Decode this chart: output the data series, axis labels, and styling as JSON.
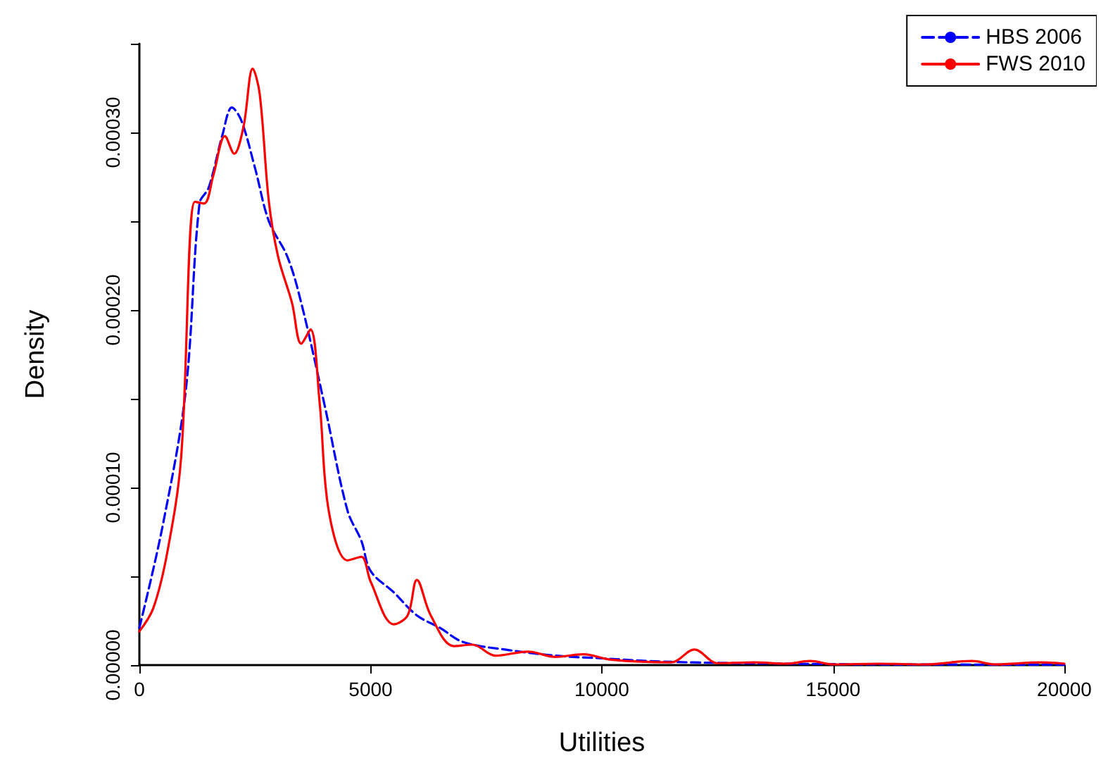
{
  "chart_data": {
    "type": "line",
    "xlabel": "Utilities",
    "ylabel": "Density",
    "xlim": [
      0,
      20000
    ],
    "xticks": [
      0,
      5000,
      10000,
      15000,
      20000
    ],
    "ylim": [
      0,
      0.00035
    ],
    "yticks": [
      {
        "value": 0,
        "label": "0.00000"
      },
      {
        "value": 5e-05,
        "label": null
      },
      {
        "value": 0.0001,
        "label": "0.00010"
      },
      {
        "value": 0.00015,
        "label": null
      },
      {
        "value": 0.0002,
        "label": "0.00020"
      },
      {
        "value": 0.00025,
        "label": null
      },
      {
        "value": 0.0003,
        "label": "0.00030"
      },
      {
        "value": 0.00035,
        "label": null
      }
    ],
    "grid": false,
    "legend": "top right",
    "marker": "none",
    "series": [
      {
        "name": "HBS 2006",
        "color": "#0000ff",
        "line_style": "dashed",
        "x": [
          0,
          500,
          1000,
          1300,
          1500,
          1800,
          2000,
          2200,
          2500,
          2800,
          3200,
          3500,
          4000,
          4500,
          4800,
          5000,
          5500,
          6000,
          6500,
          7000,
          8000,
          9000,
          10000,
          11000,
          12000,
          14000,
          16000,
          18000,
          20000
        ],
        "values": [
          2.1e-05,
          7.8e-05,
          0.000154,
          0.00026,
          0.000269,
          0.000299,
          0.000314,
          0.000307,
          0.00028,
          0.00025,
          0.00023,
          0.000204,
          0.000147,
          8.7e-05,
          7e-05,
          5.3e-05,
          4.1e-05,
          2.8e-05,
          2.1e-05,
          1.3e-05,
          8.4e-06,
          5.3e-06,
          3.8e-06,
          2.3e-06,
          1.5e-06,
          8e-07,
          4e-07,
          3e-07,
          2e-07
        ]
      },
      {
        "name": "FWS 2010",
        "color": "#ff0000",
        "line_style": "solid",
        "x": [
          0,
          300,
          600,
          900,
          1200,
          1400,
          1600,
          1850,
          2050,
          2250,
          2450,
          2600,
          2800,
          3000,
          3300,
          3500,
          3700,
          3900,
          4100,
          4500,
          4800,
          5000,
          5500,
          5800,
          6000,
          6300,
          6800,
          7200,
          7700,
          8400,
          9000,
          9600,
          10200,
          11500,
          12000,
          12500,
          13300,
          14000,
          14500,
          15000,
          16000,
          17000,
          18000,
          18500,
          19500,
          20000
        ],
        "values": [
          1.9e-05,
          3.2e-05,
          6.3e-05,
          0.000116,
          0.000261,
          0.00026,
          0.000276,
          0.000298,
          0.000288,
          0.000303,
          0.000336,
          0.000322,
          0.000261,
          0.00023,
          0.000204,
          0.000181,
          0.000189,
          0.000147,
          8.6e-05,
          5.9e-05,
          6.1e-05,
          4.7e-05,
          2.3e-05,
          2.8e-05,
          4.8e-05,
          2.8e-05,
          1.07e-05,
          1.15e-05,
          5.3e-06,
          7.6e-06,
          4.6e-06,
          6.1e-06,
          3e-06,
          1.5e-06,
          8.8e-06,
          1.1e-06,
          1.5e-06,
          8e-07,
          2.3e-06,
          4e-07,
          8e-07,
          4e-07,
          2.3e-06,
          4e-07,
          1.5e-06,
          8e-07
        ]
      }
    ]
  }
}
